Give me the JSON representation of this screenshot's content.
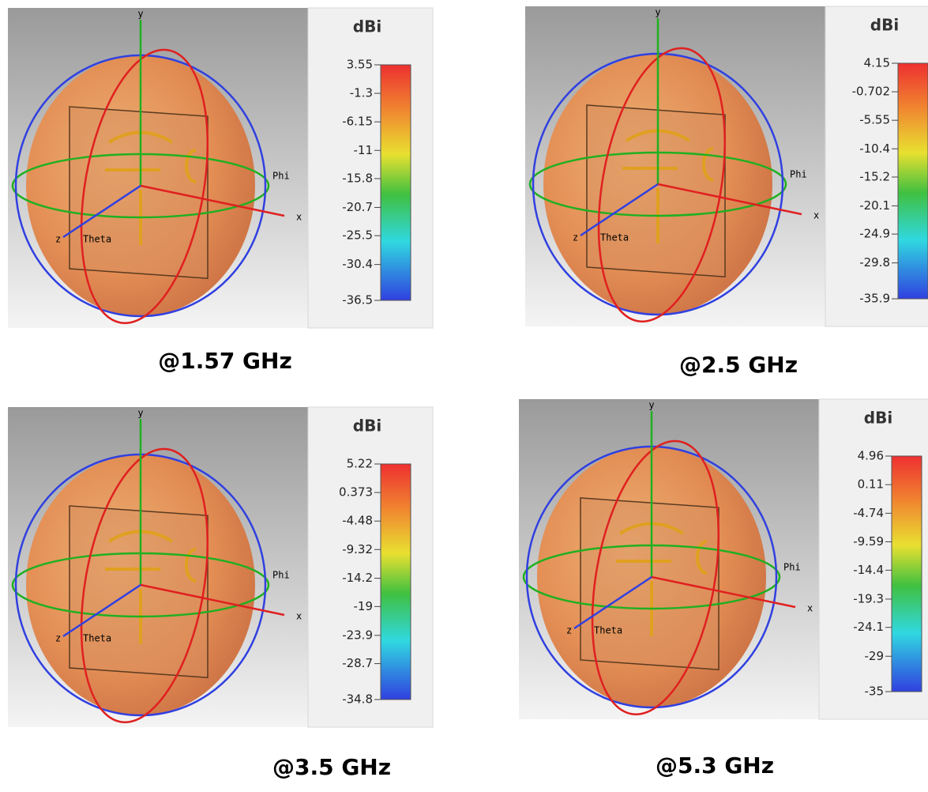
{
  "axis_labels": {
    "x": "x",
    "y": "y",
    "z": "z",
    "phi": "Phi",
    "theta": "Theta"
  },
  "panels": [
    {
      "unit": "dBi",
      "caption": "@1.57 GHz",
      "ticks": [
        3.55,
        -1.3,
        -6.15,
        -11,
        -15.8,
        -20.7,
        -25.5,
        -30.4,
        -36.5
      ]
    },
    {
      "unit": "dBi",
      "caption": "@2.5 GHz",
      "ticks": [
        4.15,
        -0.702,
        -5.55,
        -10.4,
        -15.2,
        -20.1,
        -24.9,
        -29.8,
        -35.9
      ]
    },
    {
      "unit": "dBi",
      "caption": "@3.5 GHz",
      "ticks": [
        5.22,
        0.373,
        -4.48,
        -9.32,
        -14.2,
        -19,
        -23.9,
        -28.7,
        -34.8
      ]
    },
    {
      "unit": "dBi",
      "caption": "@5.3 GHz",
      "ticks": [
        4.96,
        0.11,
        -4.74,
        -9.59,
        -14.4,
        -19.3,
        -24.1,
        -29,
        -35
      ]
    }
  ]
}
